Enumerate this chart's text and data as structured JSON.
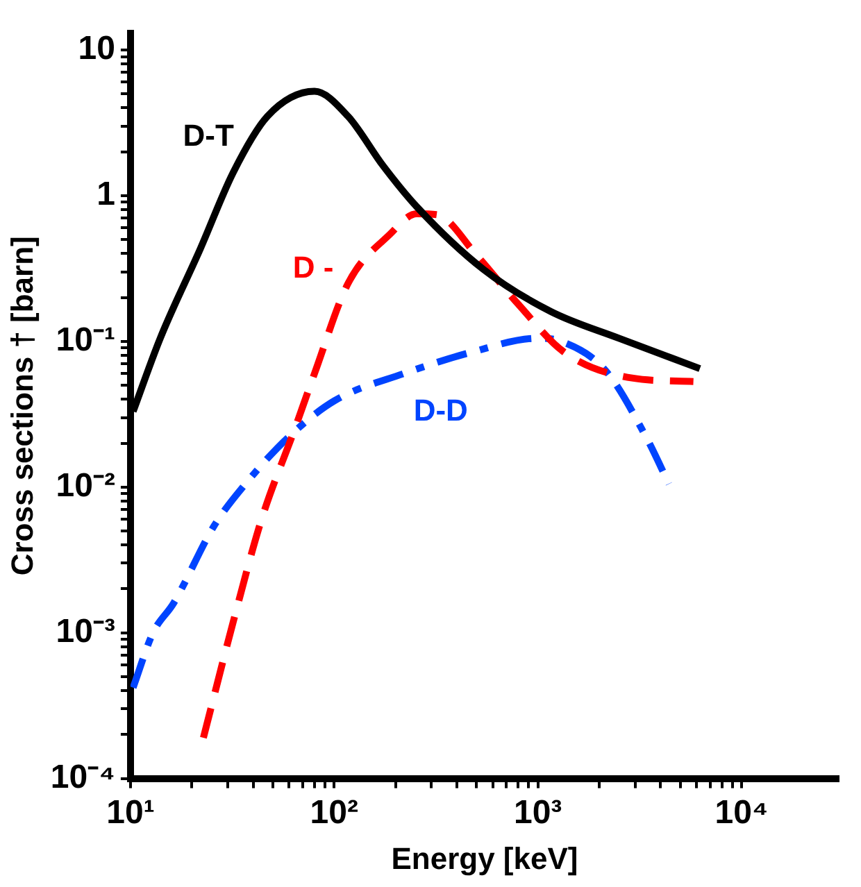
{
  "chart_data": {
    "type": "line",
    "xlabel": "Energy [keV]",
    "ylabel": "Cross sections † [barn]",
    "log": "xy",
    "grid": false,
    "legend": false,
    "marker": "none",
    "xlim": [
      10,
      30000
    ],
    "ylim": [
      0.0001,
      13
    ],
    "xticks": [
      {
        "value": 10,
        "label": "10¹"
      },
      {
        "value": 20,
        "label": null
      },
      {
        "value": 30,
        "label": null
      },
      {
        "value": 40,
        "label": null
      },
      {
        "value": 50,
        "label": null
      },
      {
        "value": 60,
        "label": null
      },
      {
        "value": 70,
        "label": null
      },
      {
        "value": 80,
        "label": null
      },
      {
        "value": 90,
        "label": null
      },
      {
        "value": 100,
        "label": "10²"
      },
      {
        "value": 200,
        "label": null
      },
      {
        "value": 300,
        "label": null
      },
      {
        "value": 400,
        "label": null
      },
      {
        "value": 500,
        "label": null
      },
      {
        "value": 600,
        "label": null
      },
      {
        "value": 700,
        "label": null
      },
      {
        "value": 800,
        "label": null
      },
      {
        "value": 900,
        "label": null
      },
      {
        "value": 1000,
        "label": "10³"
      },
      {
        "value": 2000,
        "label": null
      },
      {
        "value": 3000,
        "label": null
      },
      {
        "value": 4000,
        "label": null
      },
      {
        "value": 5000,
        "label": null
      },
      {
        "value": 6000,
        "label": null
      },
      {
        "value": 7000,
        "label": null
      },
      {
        "value": 8000,
        "label": null
      },
      {
        "value": 9000,
        "label": null
      },
      {
        "value": 10000,
        "label": "10⁴"
      }
    ],
    "yticks": [
      {
        "value": 0.0001,
        "label": "10⁻⁴"
      },
      {
        "value": 0.0002,
        "label": null
      },
      {
        "value": 0.0003,
        "label": null
      },
      {
        "value": 0.0004,
        "label": null
      },
      {
        "value": 0.0005,
        "label": null
      },
      {
        "value": 0.0006,
        "label": null
      },
      {
        "value": 0.0007,
        "label": null
      },
      {
        "value": 0.0008,
        "label": null
      },
      {
        "value": 0.0009,
        "label": null
      },
      {
        "value": 0.001,
        "label": "10⁻³"
      },
      {
        "value": 0.002,
        "label": null
      },
      {
        "value": 0.003,
        "label": null
      },
      {
        "value": 0.004,
        "label": null
      },
      {
        "value": 0.005,
        "label": null
      },
      {
        "value": 0.006,
        "label": null
      },
      {
        "value": 0.007,
        "label": null
      },
      {
        "value": 0.008,
        "label": null
      },
      {
        "value": 0.009,
        "label": null
      },
      {
        "value": 0.01,
        "label": "10⁻²"
      },
      {
        "value": 0.02,
        "label": null
      },
      {
        "value": 0.03,
        "label": null
      },
      {
        "value": 0.04,
        "label": null
      },
      {
        "value": 0.05,
        "label": null
      },
      {
        "value": 0.06,
        "label": null
      },
      {
        "value": 0.07,
        "label": null
      },
      {
        "value": 0.08,
        "label": null
      },
      {
        "value": 0.09,
        "label": null
      },
      {
        "value": 0.1,
        "label": "10⁻¹"
      },
      {
        "value": 0.2,
        "label": null
      },
      {
        "value": 0.3,
        "label": null
      },
      {
        "value": 0.4,
        "label": null
      },
      {
        "value": 0.5,
        "label": null
      },
      {
        "value": 0.6,
        "label": null
      },
      {
        "value": 0.7,
        "label": null
      },
      {
        "value": 0.8,
        "label": null
      },
      {
        "value": 0.9,
        "label": null
      },
      {
        "value": 1,
        "label": "1"
      },
      {
        "value": 2,
        "label": null
      },
      {
        "value": 3,
        "label": null
      },
      {
        "value": 4,
        "label": null
      },
      {
        "value": 5,
        "label": null
      },
      {
        "value": 6,
        "label": null
      },
      {
        "value": 7,
        "label": null
      },
      {
        "value": 8,
        "label": null
      },
      {
        "value": 9,
        "label": null
      },
      {
        "value": 10,
        "label": "10"
      }
    ],
    "series": [
      {
        "color": "#000000",
        "line_style": "solid",
        "x": [
          10.3,
          14,
          22,
          32,
          47,
          80,
          117,
          174,
          254,
          543,
          1160,
          2500,
          6240
        ],
        "values": [
          0.033,
          0.105,
          0.43,
          1.45,
          3.5,
          5.2,
          3.5,
          1.6,
          0.84,
          0.31,
          0.16,
          0.105,
          0.065
        ]
      },
      {
        "color": "#ff0000",
        "line_style": "dashed",
        "x": [
          22.8,
          32,
          44,
          64,
          80,
          117,
          187,
          254,
          318,
          500,
          800,
          1350,
          2900,
          5800
        ],
        "values": [
          0.00019,
          0.0012,
          0.006,
          0.025,
          0.06,
          0.25,
          0.54,
          0.75,
          0.74,
          0.39,
          0.18,
          0.084,
          0.056,
          0.053
        ]
      },
      {
        "color": "#0044ff",
        "line_style": "dashdot",
        "x": [
          10.3,
          12.9,
          16.3,
          25.7,
          37.7,
          59.6,
          100,
          219,
          470,
          1000,
          1300,
          2150,
          3400,
          4400
        ],
        "values": [
          0.00042,
          0.001,
          0.0016,
          0.0054,
          0.011,
          0.022,
          0.039,
          0.06,
          0.084,
          0.105,
          0.1,
          0.063,
          0.022,
          0.0105
        ]
      }
    ],
    "annotations": [
      "D-T",
      "D -",
      "D-D"
    ]
  }
}
